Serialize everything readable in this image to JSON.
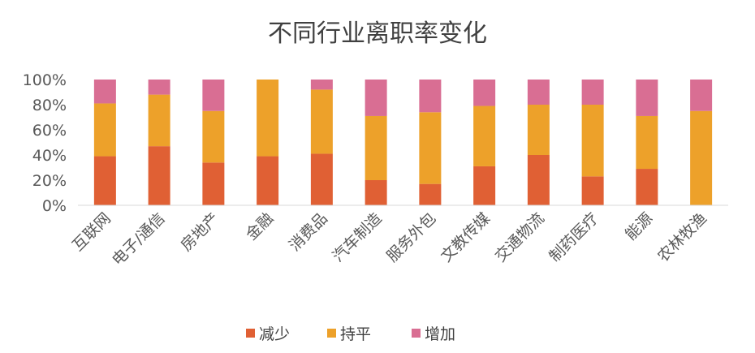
{
  "chart_data": {
    "type": "bar",
    "stacked": true,
    "percent": true,
    "title": "不同行业离职率变化",
    "xlabel": "",
    "ylabel": "",
    "ylim": [
      0,
      100
    ],
    "yticks": [
      "0%",
      "20%",
      "40%",
      "60%",
      "80%",
      "100%"
    ],
    "grid": false,
    "legend_position": "bottom",
    "categories": [
      "互联网",
      "电子/通信",
      "房地产",
      "金融",
      "消费品",
      "汽车制造",
      "服务外包",
      "文教传媒",
      "交通物流",
      "制药医疗",
      "能源",
      "农林牧渔"
    ],
    "series": [
      {
        "name": "减少",
        "color": "#E06034",
        "values": [
          39,
          47,
          34,
          39,
          41,
          20,
          17,
          31,
          40,
          23,
          29,
          0
        ]
      },
      {
        "name": "持平",
        "color": "#EDA12A",
        "values": [
          42,
          41,
          41,
          61,
          51,
          51,
          57,
          48,
          40,
          57,
          42,
          75
        ]
      },
      {
        "name": "增加",
        "color": "#D96E93",
        "values": [
          19,
          12,
          25,
          0,
          8,
          29,
          26,
          21,
          20,
          20,
          29,
          25
        ]
      }
    ]
  }
}
